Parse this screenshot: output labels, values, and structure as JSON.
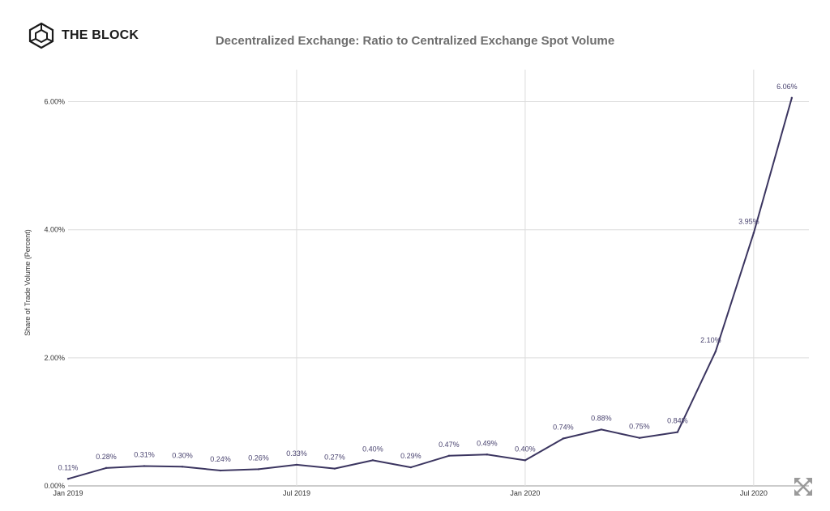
{
  "brand": {
    "name": "THE BLOCK",
    "icon": "cube-logo-icon"
  },
  "chart_data": {
    "type": "line",
    "title": "Decentralized Exchange: Ratio to Centralized Exchange Spot Volume",
    "ylabel": "Share of Trade Volume (Percent)",
    "xlabel": "",
    "x": [
      "2019-01",
      "2019-02",
      "2019-03",
      "2019-04",
      "2019-05",
      "2019-06",
      "2019-07",
      "2019-08",
      "2019-09",
      "2019-10",
      "2019-11",
      "2019-12",
      "2020-01",
      "2020-02",
      "2020-03",
      "2020-04",
      "2020-05",
      "2020-06",
      "2020-07",
      "2020-08"
    ],
    "values": [
      0.11,
      0.28,
      0.31,
      0.3,
      0.24,
      0.26,
      0.33,
      0.27,
      0.4,
      0.29,
      0.47,
      0.49,
      0.4,
      0.74,
      0.88,
      0.75,
      0.84,
      2.1,
      3.95,
      6.06
    ],
    "data_labels": [
      "0.11%",
      "0.28%",
      "0.31%",
      "0.30%",
      "0.24%",
      "0.26%",
      "0.33%",
      "0.27%",
      "0.40%",
      "0.29%",
      "0.47%",
      "0.49%",
      "0.40%",
      "0.74%",
      "0.88%",
      "0.75%",
      "0.84%",
      "2.10%",
      "3.95%",
      "6.06%"
    ],
    "x_ticks": [
      {
        "label": "Jan 2019",
        "index": 0
      },
      {
        "label": "Jul 2019",
        "index": 6
      },
      {
        "label": "Jan 2020",
        "index": 12
      },
      {
        "label": "Jul 2020",
        "index": 18
      }
    ],
    "y_ticks": [
      {
        "label": "0.00%",
        "value": 0
      },
      {
        "label": "2.00%",
        "value": 2
      },
      {
        "label": "4.00%",
        "value": 4
      },
      {
        "label": "6.00%",
        "value": 6
      }
    ],
    "ylim": [
      0,
      6.5
    ],
    "grid": true,
    "legend": "none",
    "line_color": "#3b3560",
    "label_color": "#4a4470"
  },
  "controls": {
    "expand_icon": "expand-arrows-icon"
  }
}
